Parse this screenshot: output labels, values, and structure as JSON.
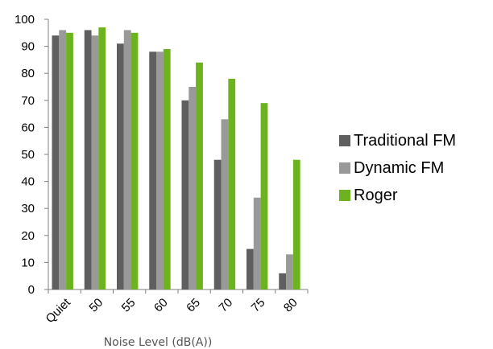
{
  "chart_data": {
    "type": "bar",
    "categories": [
      "Quiet",
      "50",
      "55",
      "60",
      "65",
      "70",
      "75",
      "80"
    ],
    "series": [
      {
        "name": "Traditional FM",
        "color": "#5f5f5f",
        "values": [
          94,
          96,
          91,
          88,
          70,
          48,
          15,
          6
        ]
      },
      {
        "name": "Dynamic FM",
        "color": "#999999",
        "values": [
          96,
          94,
          96,
          88,
          75,
          63,
          34,
          13
        ]
      },
      {
        "name": "Roger",
        "color": "#6cb31f",
        "values": [
          95,
          97,
          95,
          89,
          84,
          78,
          69,
          48
        ]
      }
    ],
    "xlabel": "Noise Level (dB(A))",
    "ylabel": "",
    "ylim": [
      0,
      100
    ],
    "yticks": [
      "0",
      "10",
      "20",
      "30",
      "40",
      "50",
      "60",
      "70",
      "80",
      "90",
      "100"
    ],
    "grid": false,
    "legend_position": "right"
  }
}
